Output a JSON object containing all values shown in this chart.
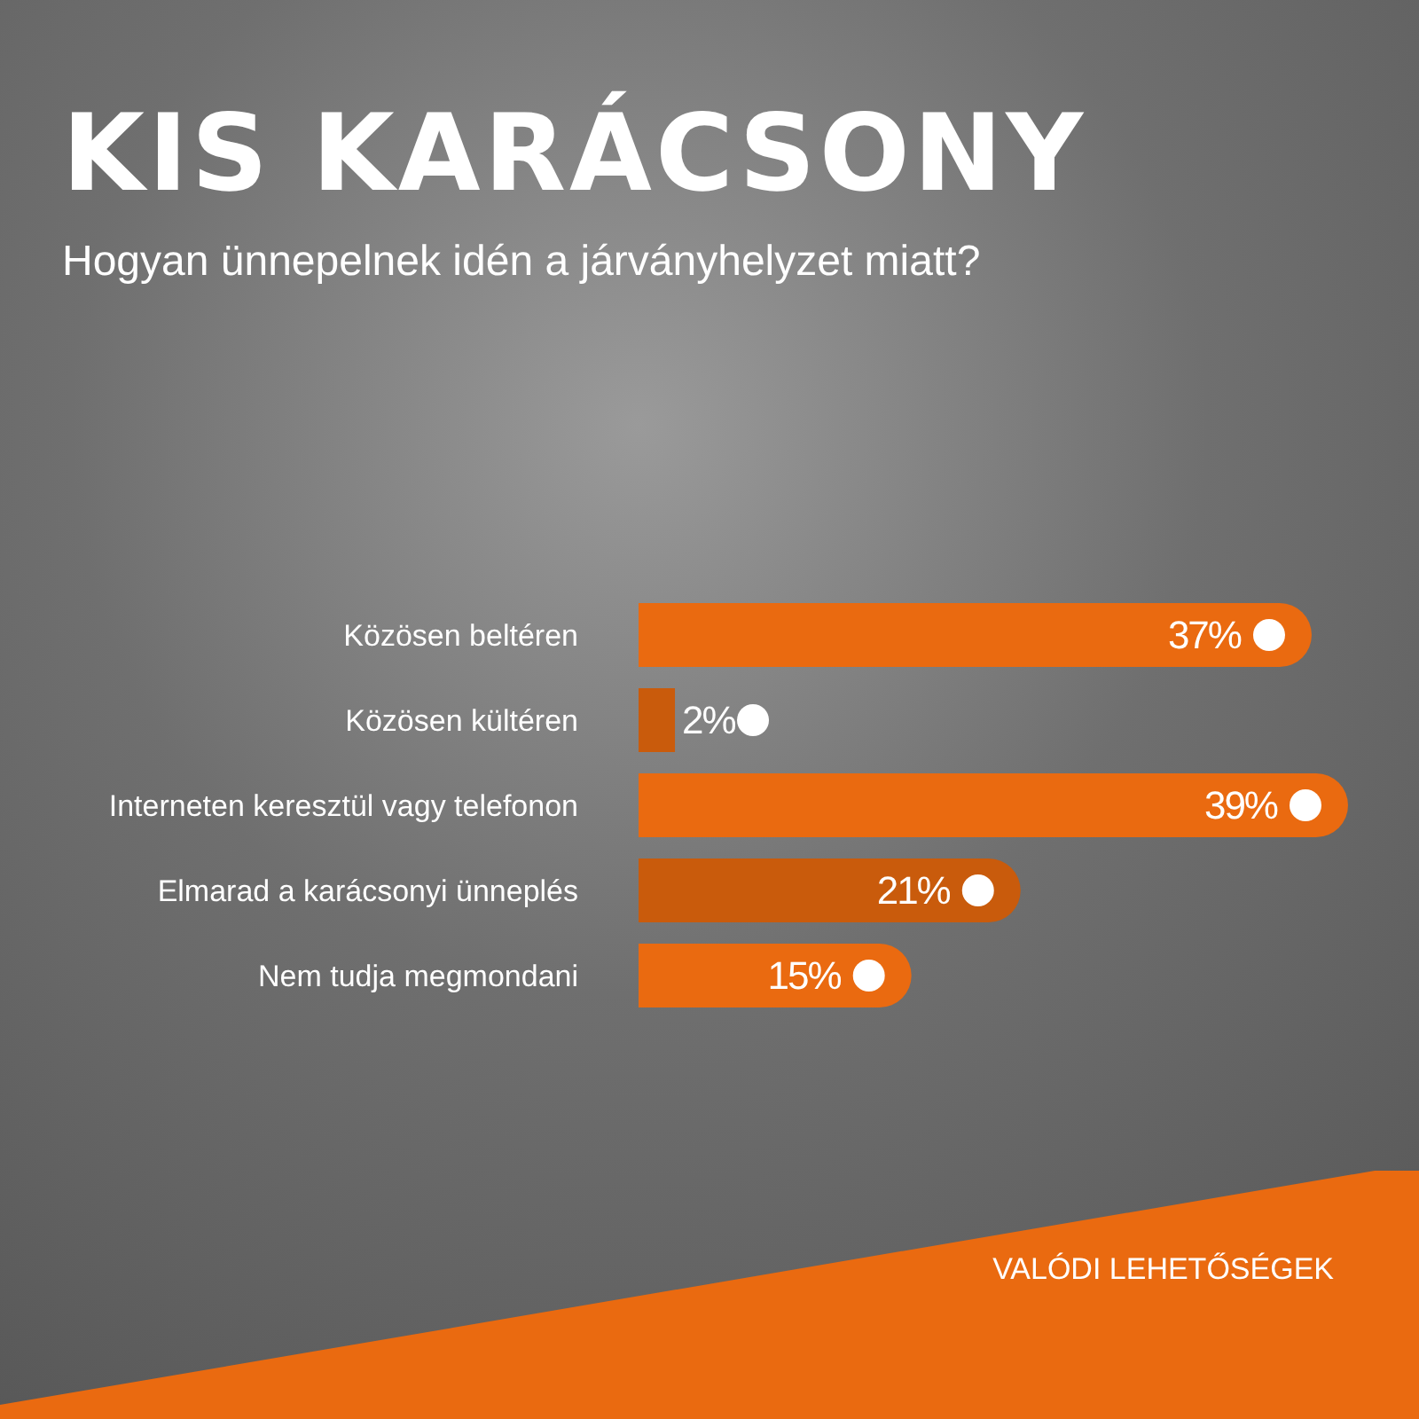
{
  "chart_data": {
    "type": "bar",
    "orientation": "horizontal",
    "title": "KIS KARÁCSONY",
    "subtitle": "Hogyan ünnepelnek idén a járványhelyzet miatt?",
    "categories": [
      "Közösen beltéren",
      "Közösen kültéren",
      "Interneten keresztül vagy telefonon",
      "Elmarad a karácsonyi ünneplés",
      "Nem tudja megmondani"
    ],
    "values": [
      37,
      2,
      39,
      21,
      15
    ],
    "value_labels": [
      "37%",
      "2%",
      "39%",
      "21%",
      "15%"
    ],
    "colors": [
      "#ea6a10",
      "#c95b0c",
      "#ea6a10",
      "#c95b0c",
      "#ea6a10"
    ],
    "annotations": [
      "VALÓDI LEHETŐSÉGEK"
    ]
  }
}
